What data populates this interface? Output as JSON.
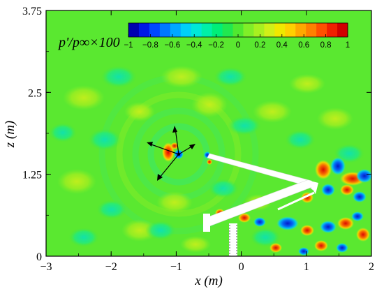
{
  "chart_data": {
    "type": "heatmap",
    "title": "",
    "xlabel": "x (m)",
    "ylabel": "z (m)",
    "xlim": [
      -3,
      2
    ],
    "ylim": [
      0,
      3.75
    ],
    "x_ticks": [
      "−3",
      "−2",
      "−1",
      "0",
      "1",
      "2"
    ],
    "x_tick_values": [
      -3,
      -2,
      -1,
      0,
      1,
      2
    ],
    "y_ticks": [
      "0",
      "1.25",
      "2.5",
      "3.75"
    ],
    "y_tick_values": [
      0,
      1.25,
      2.5,
      3.75
    ],
    "colorbar": {
      "title": "p'/p∞×100",
      "range": [
        -1,
        1
      ],
      "levels": 21,
      "tick_labels": [
        "−1",
        "−0.8",
        "−0.6",
        "−0.4",
        "−0.2",
        "0",
        "0.2",
        "0.4",
        "0.6",
        "0.8",
        "1"
      ],
      "tick_values": [
        -1,
        -0.8,
        -0.6,
        -0.4,
        -0.2,
        0,
        0.2,
        0.4,
        0.6,
        0.8,
        1
      ],
      "colors": [
        "#0000b0",
        "#0018e6",
        "#0048ff",
        "#0078ff",
        "#00a8ff",
        "#00d0f8",
        "#00e8d8",
        "#00f0a8",
        "#00ee78",
        "#20e850",
        "#50e830",
        "#80ee28",
        "#a8f020",
        "#d0f018",
        "#f0e800",
        "#ffd000",
        "#ffa800",
        "#ff8000",
        "#ff5000",
        "#f02000",
        "#d00000"
      ]
    },
    "background_value": 0.15,
    "grid": false
  }
}
